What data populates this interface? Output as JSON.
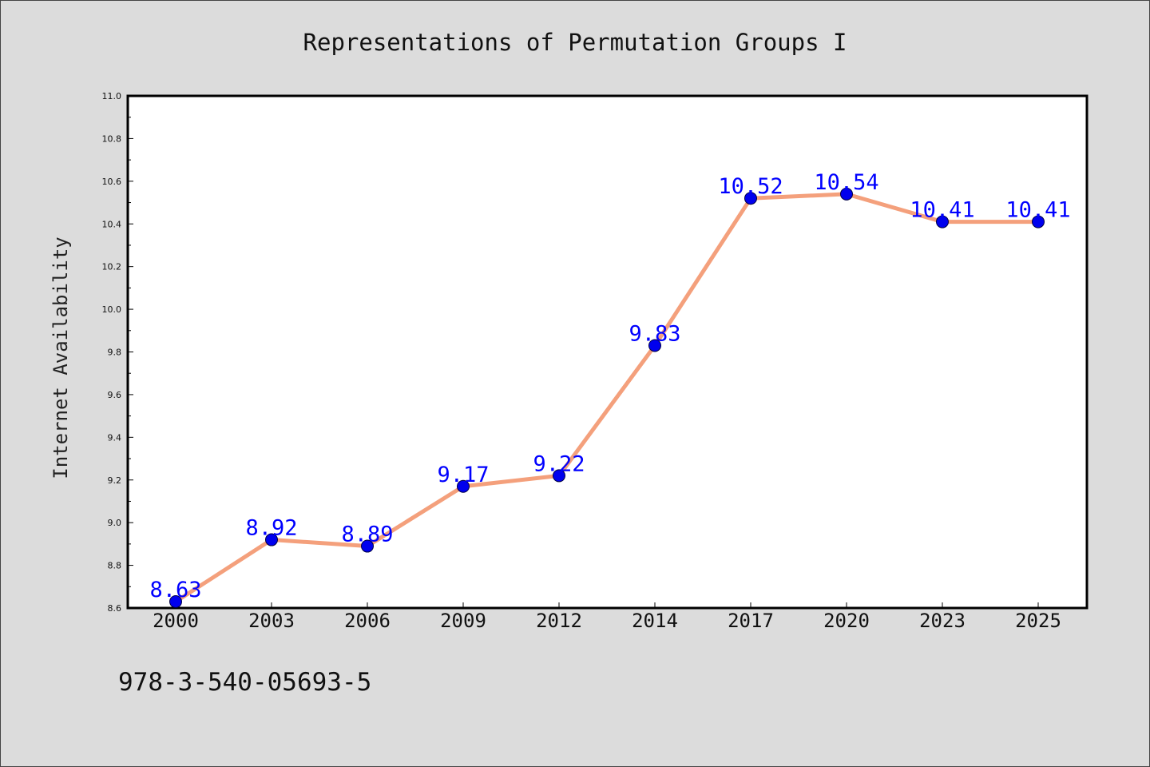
{
  "chart_data": {
    "type": "line",
    "title": "Representations of Permutation Groups I",
    "ylabel": "Internet Availability",
    "xlabel": "",
    "categories": [
      "2000",
      "2003",
      "2006",
      "2009",
      "2012",
      "2014",
      "2017",
      "2020",
      "2023",
      "2025"
    ],
    "series": [
      {
        "values": [
          8.63,
          8.92,
          8.89,
          9.17,
          9.22,
          9.83,
          10.52,
          10.54,
          10.41,
          10.41
        ],
        "data_labels": [
          "8.63",
          "8.92",
          "8.89",
          "9.17",
          "9.22",
          "9.83",
          "10.52",
          "10.54",
          "10.41",
          "10.41"
        ],
        "line_color": "#f4a07c",
        "marker_color": "#0000ee"
      }
    ],
    "ylim": [
      8.6,
      11.0
    ],
    "yticks": [
      "8.6",
      "8.8",
      "9.0",
      "9.2",
      "9.4",
      "9.6",
      "9.8",
      "10.0",
      "10.2",
      "10.4",
      "10.6",
      "10.8",
      "11.0"
    ],
    "grid": false,
    "label_color": "#0000ff"
  },
  "footer_text": "978-3-540-05693-5"
}
